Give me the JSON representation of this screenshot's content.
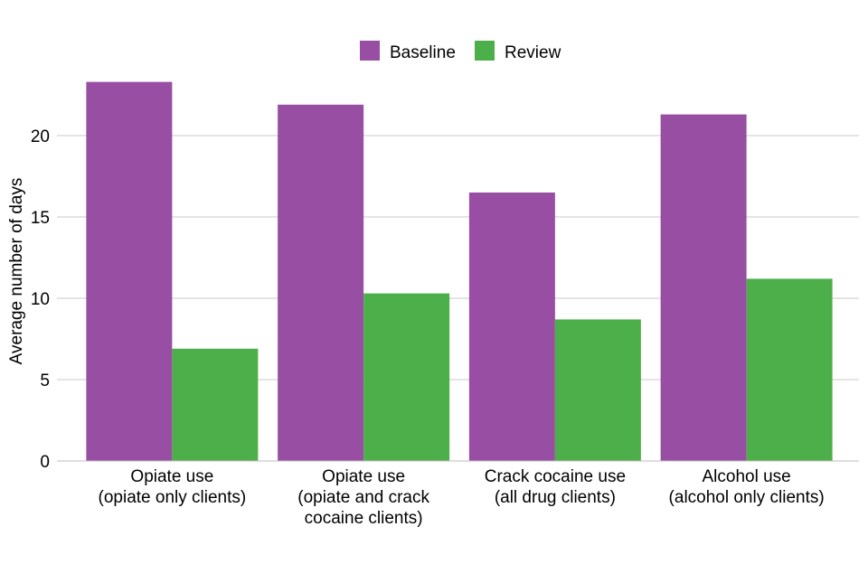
{
  "chart_data": {
    "type": "bar",
    "title": "",
    "xlabel": "",
    "ylabel": "Average number of days",
    "ylim": [
      0,
      23.5
    ],
    "yticks": [
      0,
      5,
      10,
      15,
      20
    ],
    "grid": true,
    "legend_position": "top",
    "categories": [
      [
        "Opiate use",
        "(opiate only clients)"
      ],
      [
        "Opiate use",
        "(opiate and crack",
        "cocaine clients)"
      ],
      [
        "Crack cocaine use",
        "(all drug clients)"
      ],
      [
        "Alcohol use",
        "(alcohol only clients)"
      ]
    ],
    "series": [
      {
        "name": "Baseline",
        "color": "#984EA3",
        "values": [
          23.3,
          21.9,
          16.5,
          21.3
        ]
      },
      {
        "name": "Review",
        "color": "#4DAF4A",
        "values": [
          6.9,
          10.3,
          8.7,
          11.2
        ]
      }
    ]
  }
}
